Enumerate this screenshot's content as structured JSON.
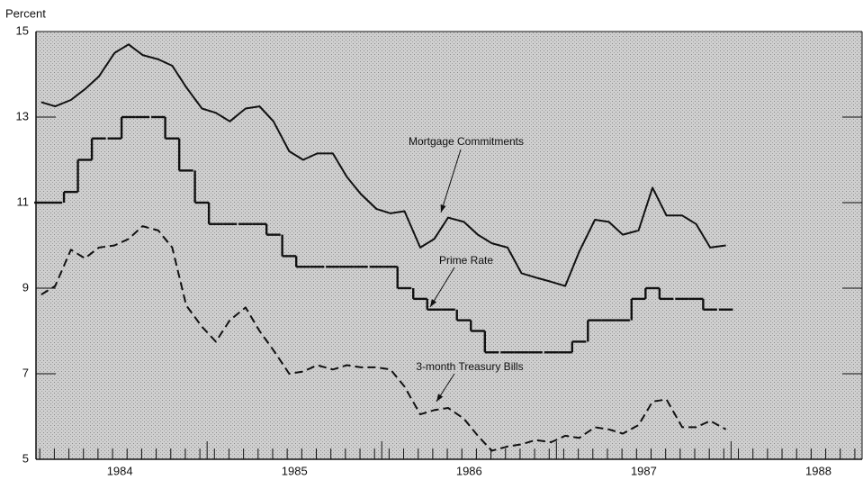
{
  "chart_data": {
    "type": "line",
    "y_label": "Percent",
    "x": [
      1983.55,
      1983.63,
      1983.72,
      1983.8,
      1983.88,
      1983.97,
      1984.05,
      1984.13,
      1984.22,
      1984.3,
      1984.38,
      1984.47,
      1984.55,
      1984.63,
      1984.72,
      1984.8,
      1984.88,
      1984.97,
      1985.05,
      1985.13,
      1985.22,
      1985.3,
      1985.38,
      1985.47,
      1985.55,
      1985.63,
      1985.72,
      1985.8,
      1985.88,
      1985.97,
      1986.05,
      1986.13,
      1986.22,
      1986.3,
      1986.38,
      1986.47,
      1986.55,
      1986.63,
      1986.72,
      1986.8,
      1986.88,
      1986.97,
      1987.05,
      1987.13,
      1987.22,
      1987.3,
      1987.38,
      1987.47
    ],
    "series": [
      {
        "name": "Mortgage Commitments",
        "color": "#111111",
        "line_style": "solid",
        "values": [
          13.35,
          13.25,
          13.4,
          13.65,
          13.95,
          14.5,
          14.7,
          14.45,
          14.35,
          14.2,
          13.7,
          13.2,
          13.1,
          12.9,
          13.2,
          13.25,
          12.9,
          12.2,
          12.0,
          12.15,
          12.15,
          11.6,
          11.2,
          10.85,
          10.75,
          10.8,
          9.95,
          10.15,
          10.65,
          10.55,
          10.25,
          10.05,
          9.95,
          9.35,
          9.25,
          9.15,
          9.05,
          9.85,
          10.6,
          10.55,
          10.25,
          10.35,
          11.35,
          10.7,
          10.7,
          10.5,
          9.95,
          10.0
        ]
      },
      {
        "name": "Prime Rate",
        "color": "#111111",
        "line_style": "step",
        "values": [
          11,
          11,
          11.25,
          12,
          12.5,
          12.5,
          13,
          13,
          13,
          12.5,
          11.75,
          11,
          10.5,
          10.5,
          10.5,
          10.5,
          10.25,
          9.75,
          9.5,
          9.5,
          9.5,
          9.5,
          9.5,
          9.5,
          9.5,
          9,
          8.75,
          8.5,
          8.5,
          8.25,
          8,
          7.5,
          7.5,
          7.5,
          7.5,
          7.5,
          7.5,
          7.75,
          8.25,
          8.25,
          8.25,
          8.75,
          9,
          8.75,
          8.75,
          8.75,
          8.5,
          8.5
        ]
      },
      {
        "name": "3-month Treasury Bills",
        "color": "#111111",
        "line_style": "dashed",
        "values": [
          8.85,
          9.05,
          9.9,
          9.7,
          9.95,
          10.0,
          10.15,
          10.45,
          10.35,
          9.95,
          8.6,
          8.1,
          7.75,
          8.25,
          8.55,
          8.0,
          7.55,
          7.0,
          7.05,
          7.2,
          7.1,
          7.2,
          7.15,
          7.15,
          7.1,
          6.7,
          6.05,
          6.15,
          6.2,
          5.95,
          5.55,
          5.2,
          5.3,
          5.35,
          5.45,
          5.4,
          5.55,
          5.5,
          5.75,
          5.7,
          5.6,
          5.8,
          6.35,
          6.4,
          5.75,
          5.75,
          5.9,
          5.7
        ]
      }
    ],
    "xlim": [
      1983.52,
      1988.25
    ],
    "xticks": [
      1984,
      1985,
      1986,
      1987,
      1988
    ],
    "ylim": [
      5,
      15
    ],
    "yticks": [
      5,
      7,
      9,
      11,
      13,
      15
    ],
    "background": "#c9c9c9"
  }
}
